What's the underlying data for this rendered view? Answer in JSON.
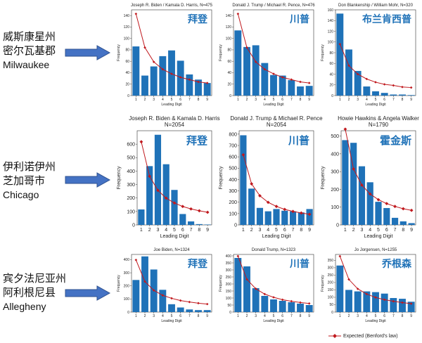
{
  "rows": [
    {
      "label_lines": [
        "威斯康星州",
        "密尔瓦基郡",
        "Milwaukee"
      ]
    },
    {
      "label_lines": [
        "伊利诺伊州",
        "芝加哥市",
        "Chicago"
      ]
    },
    {
      "label_lines": [
        "宾夕法尼亚州",
        "阿利根尼县",
        "Allegheny"
      ]
    }
  ],
  "expected_color": "#c0191e",
  "bar_color": "#1f72b8",
  "annot_color": "#1f72b8",
  "legend_label": "Expected (Benford's law)",
  "chart_data": [
    {
      "type": "bar",
      "title": "Joseph R. Biden / Kamala D. Harris, N=475",
      "annotation": "拜登",
      "xlabel": "Leading Digit",
      "ylabel": "Frequency",
      "categories": [
        "1",
        "2",
        "3",
        "4",
        "5",
        "6",
        "7",
        "8",
        "9"
      ],
      "ylim": [
        0,
        150
      ],
      "yticks": [
        0,
        20,
        40,
        60,
        80,
        100,
        120,
        140
      ],
      "series": [
        {
          "values": [
            86,
            35,
            51,
            69,
            79,
            61,
            37,
            28,
            22
          ]
        },
        {
          "name": "Expected (Benford's law)",
          "values": [
            143,
            84,
            59,
            46,
            38,
            32,
            28,
            24,
            22
          ]
        }
      ]
    },
    {
      "type": "bar",
      "title": "Donald J. Trump / Michael R. Pence, N=476",
      "annotation": "川普",
      "xlabel": "Leading Digit",
      "ylabel": "Frequency",
      "categories": [
        "1",
        "2",
        "3",
        "4",
        "5",
        "6",
        "7",
        "8",
        "9"
      ],
      "ylim": [
        0,
        150
      ],
      "yticks": [
        0,
        20,
        40,
        60,
        80,
        100,
        120,
        140
      ],
      "series": [
        {
          "values": [
            114,
            85,
            88,
            57,
            36,
            35,
            27,
            16,
            17
          ]
        },
        {
          "name": "Expected (Benford's law)",
          "values": [
            143,
            84,
            59,
            46,
            38,
            32,
            28,
            24,
            22
          ]
        }
      ]
    },
    {
      "type": "bar",
      "title": "Don Blankenship / William Mohr, N=320",
      "annotation": "布兰肯西普",
      "xlabel": "Leading Digit",
      "ylabel": "Frequency",
      "categories": [
        "1",
        "2",
        "3",
        "4",
        "5",
        "6",
        "7",
        "8",
        "9"
      ],
      "ylim": [
        0,
        160
      ],
      "yticks": [
        0,
        20,
        40,
        60,
        80,
        100,
        120,
        140,
        160
      ],
      "series": [
        {
          "values": [
            153,
            86,
            46,
            17,
            8,
            5,
            2,
            2,
            1
          ]
        },
        {
          "name": "Expected (Benford's law)",
          "values": [
            96,
            56,
            40,
            31,
            25,
            21,
            19,
            16,
            15
          ]
        }
      ]
    },
    {
      "type": "bar",
      "title": "Joseph R. Biden & Kamala D. Harris\nN=2054",
      "annotation": "拜登",
      "xlabel": "Leading Digit",
      "ylabel": "Frequency",
      "categories": [
        "1",
        "2",
        "3",
        "4",
        "5",
        "6",
        "7",
        "8",
        "9"
      ],
      "ylim": [
        0,
        700
      ],
      "yticks": [
        0,
        100,
        200,
        300,
        400,
        500,
        600
      ],
      "series": [
        {
          "values": [
            115,
            437,
            670,
            451,
            260,
            81,
            26,
            6,
            3
          ]
        },
        {
          "name": "Expected (Benford's law)",
          "values": [
            618,
            362,
            257,
            199,
            163,
            137,
            119,
            105,
            94
          ]
        }
      ]
    },
    {
      "type": "bar",
      "title": "Donald J. Trump & Michael R. Pence\nN=2054",
      "annotation": "川普",
      "xlabel": "Leading Digit",
      "ylabel": "Frequency",
      "categories": [
        "1",
        "2",
        "3",
        "4",
        "5",
        "6",
        "7",
        "8",
        "9"
      ],
      "ylim": [
        0,
        830
      ],
      "yticks": [
        0,
        100,
        200,
        300,
        400,
        500,
        600,
        700,
        800
      ],
      "series": [
        {
          "values": [
            790,
            320,
            150,
            120,
            140,
            125,
            120,
            110,
            140
          ]
        },
        {
          "name": "Expected (Benford's law)",
          "values": [
            618,
            362,
            257,
            199,
            163,
            137,
            119,
            105,
            94
          ]
        }
      ]
    },
    {
      "type": "bar",
      "title": "Howie Hawkins & Angela Walker\nN=1790",
      "annotation": "霍金斯",
      "xlabel": "Leading Digit",
      "ylabel": "Frequency",
      "categories": [
        "1",
        "2",
        "3",
        "4",
        "5",
        "6",
        "7",
        "8",
        "9"
      ],
      "ylim": [
        0,
        530
      ],
      "yticks": [
        0,
        100,
        200,
        300,
        400,
        500
      ],
      "series": [
        {
          "values": [
            477,
            462,
            330,
            240,
            130,
            95,
            40,
            20,
            10
          ]
        },
        {
          "name": "Expected (Benford's law)",
          "values": [
            539,
            315,
            224,
            174,
            142,
            120,
            104,
            91,
            82
          ]
        }
      ]
    },
    {
      "type": "bar",
      "title": "Joe Biden, N=1324",
      "annotation": "拜登",
      "xlabel": "Leading Digit",
      "ylabel": "Frequency",
      "categories": [
        "1",
        "2",
        "3",
        "4",
        "5",
        "6",
        "7",
        "8",
        "9"
      ],
      "ylim": [
        0,
        440
      ],
      "yticks": [
        0,
        100,
        200,
        300,
        400
      ],
      "series": [
        {
          "values": [
            245,
            425,
            325,
            170,
            60,
            35,
            20,
            15,
            15
          ]
        },
        {
          "name": "Expected (Benford's law)",
          "values": [
            398,
            233,
            166,
            128,
            105,
            88,
            77,
            68,
            61
          ]
        }
      ]
    },
    {
      "type": "bar",
      "title": "Donald Trump, N=1323",
      "annotation": "川普",
      "xlabel": "Leading Digit",
      "ylabel": "Frequency",
      "categories": [
        "1",
        "2",
        "3",
        "4",
        "5",
        "6",
        "7",
        "8",
        "9"
      ],
      "ylim": [
        0,
        410
      ],
      "yticks": [
        0,
        50,
        100,
        150,
        200,
        250,
        300,
        350,
        400
      ],
      "series": [
        {
          "values": [
            385,
            325,
            170,
            115,
            90,
            80,
            70,
            60,
            50
          ]
        },
        {
          "name": "Expected (Benford's law)",
          "values": [
            398,
            233,
            166,
            128,
            105,
            88,
            77,
            68,
            61
          ]
        }
      ]
    },
    {
      "type": "bar",
      "title": "Jo Jorgensen, N=1255",
      "annotation": "乔根森",
      "xlabel": "Leading Digit",
      "ylabel": "Frequency",
      "categories": [
        "1",
        "2",
        "3",
        "4",
        "5",
        "6",
        "7",
        "8",
        "9"
      ],
      "ylim": [
        0,
        390
      ],
      "yticks": [
        0,
        50,
        100,
        150,
        200,
        250,
        300,
        350
      ],
      "series": [
        {
          "values": [
            315,
            150,
            140,
            140,
            135,
            125,
            95,
            90,
            70
          ]
        },
        {
          "name": "Expected (Benford's law)",
          "values": [
            378,
            221,
            157,
            122,
            99,
            84,
            73,
            64,
            57
          ]
        }
      ]
    }
  ]
}
